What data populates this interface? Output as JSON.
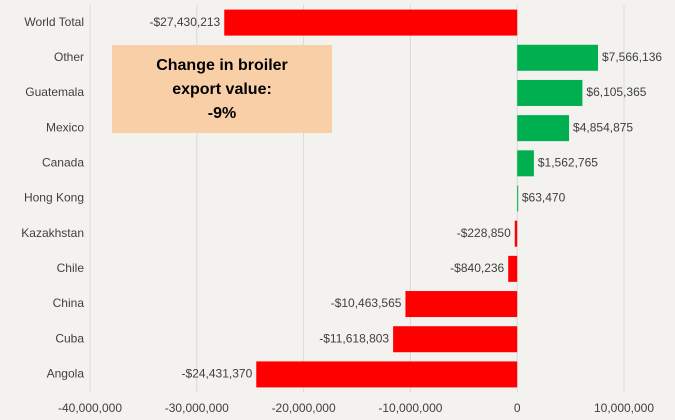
{
  "chart_data": {
    "type": "bar",
    "orientation": "horizontal",
    "categories": [
      "World Total",
      "Other",
      "Guatemala",
      "Mexico",
      "Canada",
      "Hong Kong",
      "Kazakhstan",
      "Chile",
      "China",
      "Cuba",
      "Angola"
    ],
    "values": [
      -27430213,
      7566136,
      6105365,
      4854875,
      1562765,
      63470,
      -228850,
      -840236,
      -10463565,
      -11618803,
      -24431370
    ],
    "value_labels": [
      "-$27,430,213",
      "$7,566,136",
      "$6,105,365",
      "$4,854,875",
      "$1,562,765",
      "$63,470",
      "-$228,850",
      "-$840,236",
      "-$10,463,565",
      "-$11,618,803",
      "-$24,431,370"
    ],
    "colors": [
      "#ff0000",
      "#00b050",
      "#00b050",
      "#00b050",
      "#00b050",
      "#00b050",
      "#ff0000",
      "#ff0000",
      "#ff0000",
      "#ff0000",
      "#ff0000"
    ],
    "xlim": [
      -40000000,
      10000000
    ],
    "xticks": [
      {
        "value": -40000000,
        "label": "-40,000,000"
      },
      {
        "value": -30000000,
        "label": "-30,000,000"
      },
      {
        "value": -20000000,
        "label": "-20,000,000"
      },
      {
        "value": -10000000,
        "label": "-10,000,000"
      },
      0,
      {
        "value": 10000000,
        "label": "10,000,000"
      }
    ],
    "grid": true,
    "annotation": [
      "Change in broiler",
      "export value:",
      "-9%"
    ]
  }
}
